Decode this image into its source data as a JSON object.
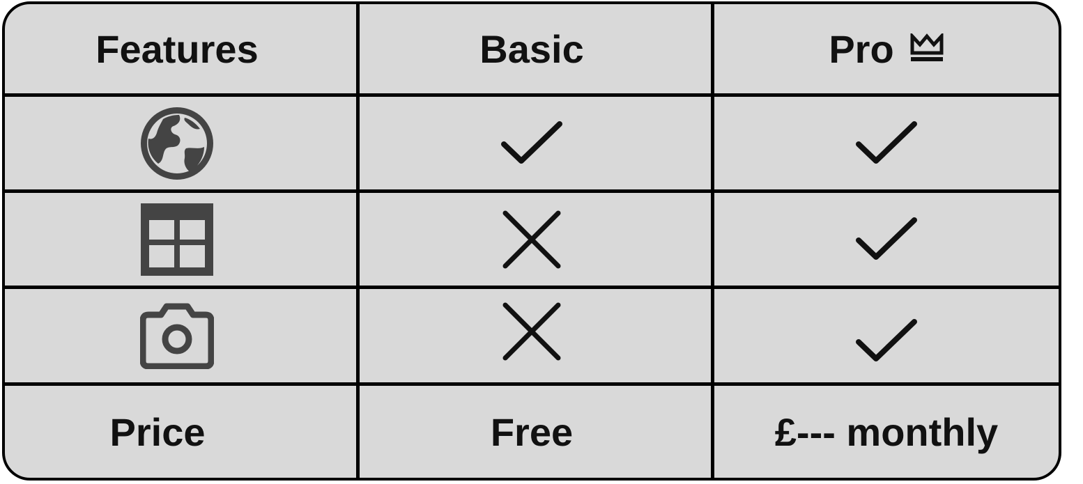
{
  "header": {
    "features_label": "Features",
    "basic_label": "Basic",
    "pro_label": "Pro",
    "pro_icon": "crown-icon"
  },
  "rows": [
    {
      "feature_icon": "globe-icon",
      "basic": "check-icon",
      "pro": "check-icon"
    },
    {
      "feature_icon": "grid-table-icon",
      "basic": "cross-icon",
      "pro": "check-icon"
    },
    {
      "feature_icon": "camera-icon",
      "basic": "cross-icon",
      "pro": "check-icon"
    }
  ],
  "footer": {
    "price_label": "Price",
    "basic_price": "Free",
    "pro_price": "£--- monthly"
  },
  "colors": {
    "table_fill": "#d9d9d9",
    "border": "#000000",
    "feature_icon": "#444444"
  }
}
